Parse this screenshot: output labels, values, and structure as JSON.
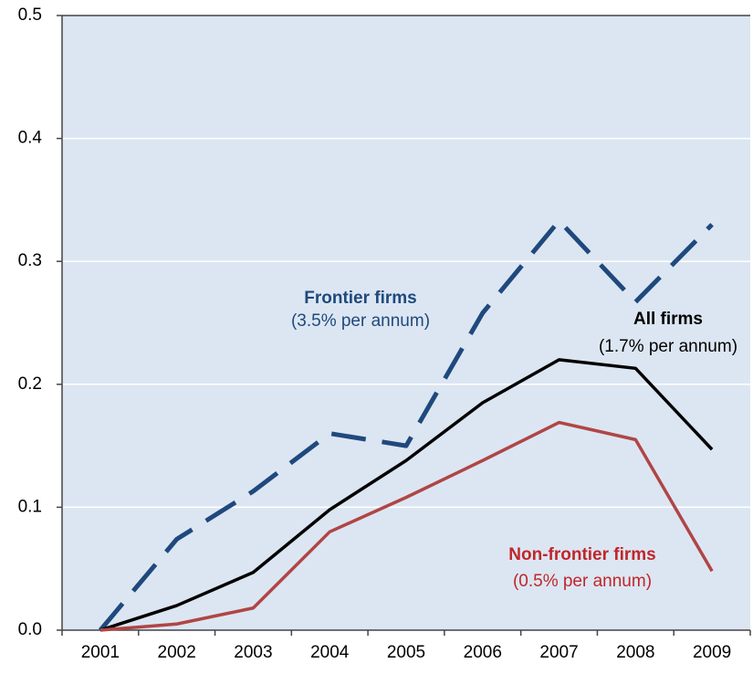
{
  "chart_data": {
    "type": "line",
    "categories": [
      "2001",
      "2002",
      "2003",
      "2004",
      "2005",
      "2006",
      "2007",
      "2008",
      "2009"
    ],
    "series": [
      {
        "name": "Frontier firms",
        "color": "#1f497d",
        "dash": true,
        "values": [
          0,
          0.074,
          0.113,
          0.16,
          0.15,
          0.258,
          0.333,
          0.267,
          0.33
        ]
      },
      {
        "name": "All firms",
        "color": "#000000",
        "dash": false,
        "values": [
          0,
          0.02,
          0.047,
          0.098,
          0.138,
          0.185,
          0.22,
          0.213,
          0.147
        ]
      },
      {
        "name": "Non-frontier firms",
        "color": "#b04545",
        "dash": false,
        "values": [
          0,
          0.005,
          0.018,
          0.08,
          0.108,
          0.138,
          0.169,
          0.155,
          0.048
        ]
      }
    ],
    "annotations": [
      "(3.5% per annum)",
      "(1.7% per annum)",
      "(0.5% per annum)"
    ],
    "ylim": [
      0,
      0.5
    ],
    "yticks": [
      {
        "value": 0,
        "label": "0.0"
      },
      0.1,
      0.2,
      0.3,
      0.4,
      0.5
    ],
    "grid": true,
    "background": "#dce6f2"
  }
}
